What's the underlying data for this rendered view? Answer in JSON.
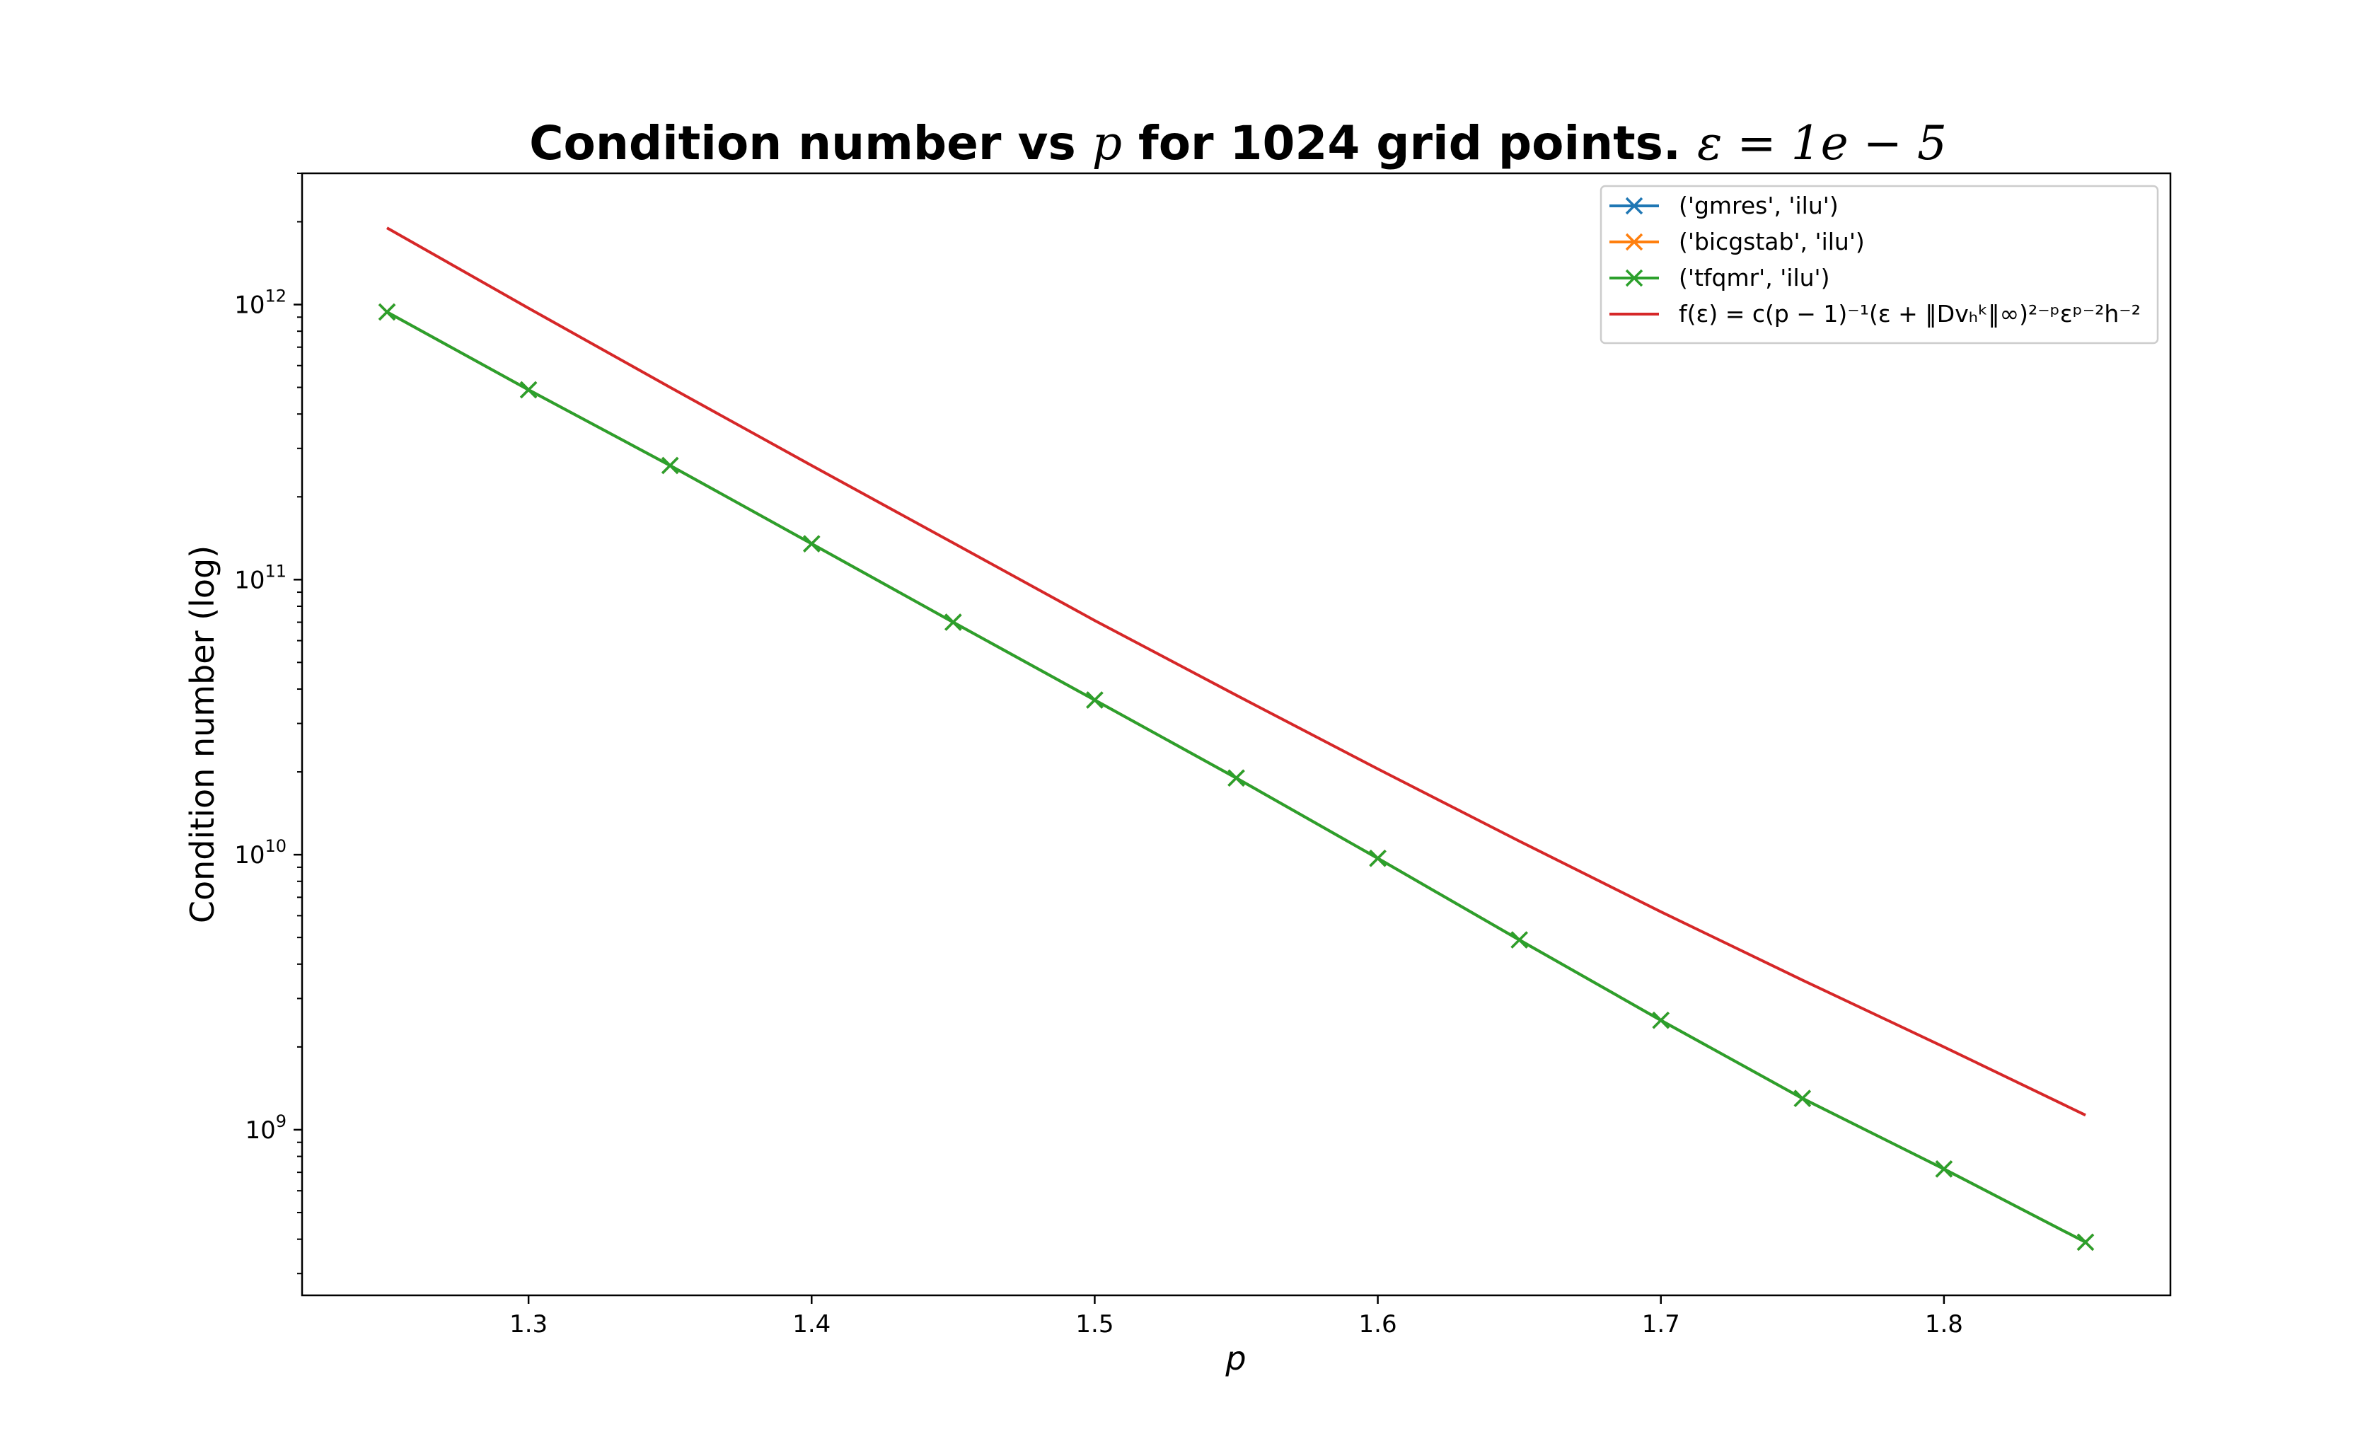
{
  "chart_data": {
    "type": "line",
    "title": {
      "prefix": "Condition number vs ",
      "p": "p",
      "middle": " for 1024 grid points. ",
      "eps": "ε = 1e − 5"
    },
    "xlabel": "p",
    "ylabel": "Condition number (log)",
    "xlim": [
      1.22,
      1.88
    ],
    "ylim": [
      250000000.0,
      3000000000000.0
    ],
    "yscale": "log",
    "grid": false,
    "legend_position": "top-right",
    "x_ticks": [
      "1.3",
      "1.4",
      "1.5",
      "1.6",
      "1.7",
      "1.8"
    ],
    "y_ticks": [
      {
        "base": "10",
        "exp": "9"
      },
      {
        "base": "10",
        "exp": "10"
      },
      {
        "base": "10",
        "exp": "11"
      },
      {
        "base": "10",
        "exp": "12"
      }
    ],
    "x": [
      1.25,
      1.3,
      1.35,
      1.4,
      1.45,
      1.5,
      1.55,
      1.6,
      1.65,
      1.7,
      1.75,
      1.8,
      1.85
    ],
    "series": [
      {
        "name": "('gmres', 'ilu')",
        "color": "#1f77b4",
        "marker": "x",
        "values": [
          940000000000.0,
          490000000000.0,
          260000000000.0,
          135000000000.0,
          70000000000.0,
          36500000000.0,
          19000000000.0,
          9700000000.0,
          4900000000.0,
          2500000000.0,
          1300000000.0,
          720000000.0,
          390000000.0
        ]
      },
      {
        "name": "('bicgstab', 'ilu')",
        "color": "#ff7f0e",
        "marker": "x",
        "values": [
          940000000000.0,
          490000000000.0,
          260000000000.0,
          135000000000.0,
          70000000000.0,
          36500000000.0,
          19000000000.0,
          9700000000.0,
          4900000000.0,
          2500000000.0,
          1300000000.0,
          720000000.0,
          390000000.0
        ]
      },
      {
        "name": "('tfqmr', 'ilu')",
        "color": "#2ca02c",
        "marker": "x",
        "values": [
          940000000000.0,
          490000000000.0,
          260000000000.0,
          135000000000.0,
          70000000000.0,
          36500000000.0,
          19000000000.0,
          9700000000.0,
          4900000000.0,
          2500000000.0,
          1300000000.0,
          720000000.0,
          390000000.0
        ]
      },
      {
        "name": "f(ε) = c(p − 1)⁻¹(ε + ‖Dvₕᵏ‖∞)²⁻ᵖεᵖ⁻²h⁻²",
        "color": "#d62728",
        "marker": "none",
        "values": [
          1900000000000.0,
          970000000000.0,
          500000000000.0,
          260000000000.0,
          136000000000.0,
          71000000000.0,
          38000000000.0,
          20500000000.0,
          11200000000.0,
          6200000000.0,
          3500000000.0,
          2000000000.0,
          1130000000.0
        ]
      }
    ]
  }
}
